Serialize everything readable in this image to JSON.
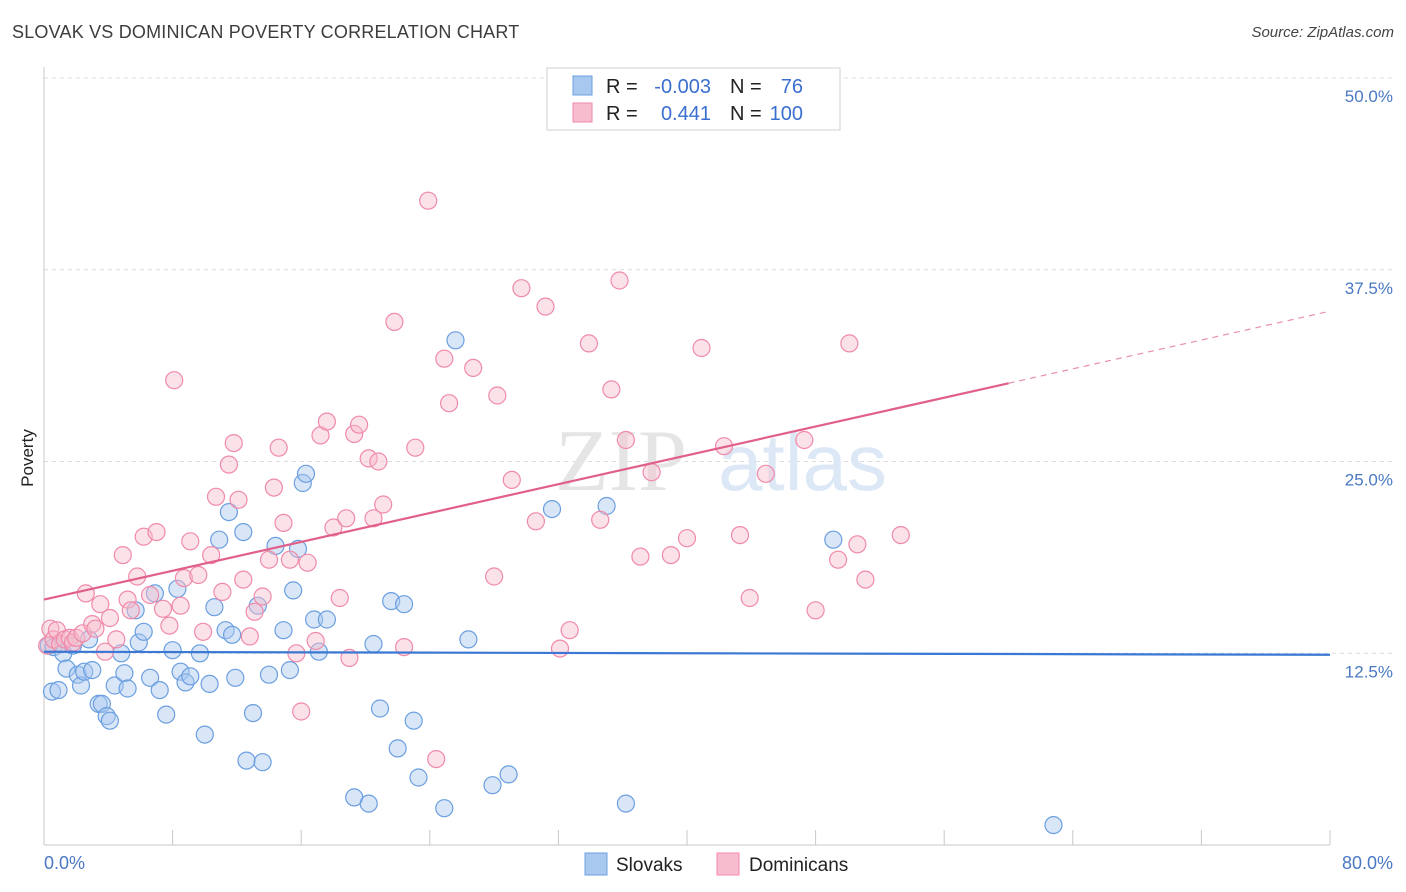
{
  "title": "SLOVAK VS DOMINICAN POVERTY CORRELATION CHART",
  "source": "Source: ZipAtlas.com",
  "chart_data": {
    "type": "scatter",
    "ylabel": "Poverty",
    "xlabel": "",
    "xlim": [
      0,
      80
    ],
    "ylim": [
      0,
      50
    ],
    "x_tick_labels": [
      {
        "value": 0,
        "label": "0.0%"
      },
      {
        "value": 80,
        "label": "80.0%"
      }
    ],
    "y_tick_labels": [
      {
        "value": 12.5,
        "label": "12.5%"
      },
      {
        "value": 25,
        "label": "25.0%"
      },
      {
        "value": 37.5,
        "label": "37.5%"
      },
      {
        "value": 50,
        "label": "50.0%"
      }
    ],
    "watermark": {
      "part1": "ZIP",
      "part2": "atlas"
    },
    "legend": {
      "r_label": "R =",
      "n_label": "N =",
      "entries": [
        {
          "r": "-0.003",
          "n": "76"
        },
        {
          "r": "0.441",
          "n": "100"
        }
      ]
    },
    "series": [
      {
        "name": "Slovaks",
        "color": "#6b9fe0",
        "fill": "#a9c8f0",
        "line_color": "#3a78d4",
        "trend": {
          "x0": 0,
          "y0": 12.6,
          "x1": 80,
          "y1": 12.4
        },
        "points": [
          [
            0.3,
            13.0
          ],
          [
            0.5,
            10.0
          ],
          [
            0.6,
            12.9
          ],
          [
            0.9,
            10.1
          ],
          [
            1.2,
            12.5
          ],
          [
            1.4,
            11.5
          ],
          [
            1.8,
            13.0
          ],
          [
            2.1,
            11.1
          ],
          [
            2.3,
            10.4
          ],
          [
            2.5,
            11.3
          ],
          [
            2.8,
            13.4
          ],
          [
            3.0,
            11.4
          ],
          [
            3.4,
            9.2
          ],
          [
            3.6,
            9.2
          ],
          [
            3.9,
            8.4
          ],
          [
            4.1,
            8.1
          ],
          [
            4.4,
            10.4
          ],
          [
            4.8,
            12.5
          ],
          [
            5.0,
            11.2
          ],
          [
            5.2,
            10.2
          ],
          [
            5.7,
            15.3
          ],
          [
            5.9,
            13.2
          ],
          [
            6.2,
            13.9
          ],
          [
            6.6,
            10.9
          ],
          [
            6.9,
            16.4
          ],
          [
            7.2,
            10.1
          ],
          [
            7.6,
            8.5
          ],
          [
            8.0,
            12.7
          ],
          [
            8.3,
            16.7
          ],
          [
            8.5,
            11.3
          ],
          [
            8.8,
            10.6
          ],
          [
            9.1,
            11.0
          ],
          [
            9.7,
            12.5
          ],
          [
            10.0,
            7.2
          ],
          [
            10.3,
            10.5
          ],
          [
            10.6,
            15.5
          ],
          [
            10.9,
            19.9
          ],
          [
            11.3,
            14.0
          ],
          [
            11.5,
            21.7
          ],
          [
            11.7,
            13.7
          ],
          [
            11.9,
            10.9
          ],
          [
            12.4,
            20.4
          ],
          [
            12.6,
            5.5
          ],
          [
            13.0,
            8.6
          ],
          [
            13.3,
            15.6
          ],
          [
            13.6,
            5.4
          ],
          [
            14.0,
            11.1
          ],
          [
            14.4,
            19.5
          ],
          [
            14.9,
            14.0
          ],
          [
            15.3,
            11.4
          ],
          [
            15.5,
            16.6
          ],
          [
            15.8,
            19.3
          ],
          [
            16.1,
            23.6
          ],
          [
            16.3,
            24.2
          ],
          [
            16.8,
            14.7
          ],
          [
            17.1,
            12.6
          ],
          [
            17.6,
            14.7
          ],
          [
            19.3,
            3.1
          ],
          [
            20.2,
            2.7
          ],
          [
            20.5,
            13.1
          ],
          [
            20.9,
            8.9
          ],
          [
            21.6,
            15.9
          ],
          [
            22.0,
            6.3
          ],
          [
            22.4,
            15.7
          ],
          [
            23.0,
            8.1
          ],
          [
            23.3,
            4.4
          ],
          [
            24.9,
            2.4
          ],
          [
            25.6,
            32.9
          ],
          [
            26.4,
            13.4
          ],
          [
            27.9,
            3.9
          ],
          [
            28.9,
            4.6
          ],
          [
            31.6,
            21.9
          ],
          [
            35.0,
            22.1
          ],
          [
            36.2,
            2.7
          ],
          [
            49.1,
            19.9
          ],
          [
            62.8,
            1.3
          ]
        ]
      },
      {
        "name": "Dominicans",
        "color": "#f08aaa",
        "fill": "#f7bccd",
        "line_color": "#e0608a",
        "trend": {
          "x0": 0,
          "y0": 16.0,
          "x1": 60,
          "y1": 30.1
        },
        "trend_dashed": {
          "x0": 60,
          "y0": 30.1,
          "x1": 80,
          "y1": 34.8
        },
        "points": [
          [
            0.2,
            13.0
          ],
          [
            0.4,
            14.1
          ],
          [
            0.6,
            13.4
          ],
          [
            0.8,
            14.0
          ],
          [
            1.0,
            13.1
          ],
          [
            1.3,
            13.4
          ],
          [
            1.6,
            13.5
          ],
          [
            1.8,
            13.2
          ],
          [
            2.0,
            13.5
          ],
          [
            2.4,
            13.8
          ],
          [
            2.6,
            16.4
          ],
          [
            3.0,
            14.4
          ],
          [
            3.2,
            14.1
          ],
          [
            3.5,
            15.7
          ],
          [
            3.8,
            12.6
          ],
          [
            4.1,
            14.8
          ],
          [
            4.5,
            13.4
          ],
          [
            4.9,
            18.9
          ],
          [
            5.2,
            16.0
          ],
          [
            5.4,
            15.3
          ],
          [
            5.8,
            17.5
          ],
          [
            6.2,
            20.1
          ],
          [
            6.6,
            16.3
          ],
          [
            7.0,
            20.4
          ],
          [
            7.4,
            15.4
          ],
          [
            7.8,
            14.3
          ],
          [
            8.1,
            30.3
          ],
          [
            8.5,
            15.6
          ],
          [
            8.7,
            17.4
          ],
          [
            9.1,
            19.8
          ],
          [
            9.6,
            17.6
          ],
          [
            9.9,
            13.9
          ],
          [
            10.4,
            18.9
          ],
          [
            10.7,
            22.7
          ],
          [
            11.1,
            16.5
          ],
          [
            11.5,
            24.8
          ],
          [
            11.8,
            26.2
          ],
          [
            12.1,
            22.5
          ],
          [
            12.4,
            17.3
          ],
          [
            12.8,
            13.6
          ],
          [
            13.1,
            15.2
          ],
          [
            13.6,
            16.2
          ],
          [
            14.0,
            18.6
          ],
          [
            14.3,
            23.3
          ],
          [
            14.6,
            25.9
          ],
          [
            14.9,
            21.0
          ],
          [
            15.3,
            18.6
          ],
          [
            15.7,
            12.5
          ],
          [
            16.0,
            8.7
          ],
          [
            16.4,
            18.4
          ],
          [
            16.9,
            13.3
          ],
          [
            17.2,
            26.7
          ],
          [
            17.6,
            27.6
          ],
          [
            18.0,
            20.7
          ],
          [
            18.4,
            16.1
          ],
          [
            18.8,
            21.3
          ],
          [
            19.0,
            12.2
          ],
          [
            19.3,
            26.8
          ],
          [
            19.6,
            27.4
          ],
          [
            20.2,
            25.2
          ],
          [
            20.5,
            21.3
          ],
          [
            20.8,
            25.0
          ],
          [
            21.1,
            22.2
          ],
          [
            21.8,
            34.1
          ],
          [
            22.4,
            12.9
          ],
          [
            23.1,
            25.9
          ],
          [
            23.9,
            42.0
          ],
          [
            24.4,
            5.6
          ],
          [
            24.9,
            31.7
          ],
          [
            25.2,
            28.8
          ],
          [
            26.7,
            31.1
          ],
          [
            28.0,
            17.5
          ],
          [
            28.2,
            29.3
          ],
          [
            29.1,
            23.8
          ],
          [
            29.7,
            36.3
          ],
          [
            30.6,
            21.1
          ],
          [
            31.2,
            35.1
          ],
          [
            32.1,
            12.8
          ],
          [
            32.7,
            14.0
          ],
          [
            33.9,
            32.7
          ],
          [
            34.6,
            21.2
          ],
          [
            35.3,
            29.7
          ],
          [
            35.8,
            36.8
          ],
          [
            36.2,
            26.4
          ],
          [
            37.1,
            18.8
          ],
          [
            37.8,
            24.3
          ],
          [
            39.0,
            18.9
          ],
          [
            40.0,
            20.0
          ],
          [
            40.9,
            32.4
          ],
          [
            42.3,
            26.0
          ],
          [
            43.3,
            20.2
          ],
          [
            43.9,
            16.1
          ],
          [
            44.9,
            24.2
          ],
          [
            47.3,
            26.4
          ],
          [
            48.0,
            15.3
          ],
          [
            49.4,
            18.6
          ],
          [
            50.1,
            32.7
          ],
          [
            50.6,
            19.6
          ],
          [
            51.1,
            17.3
          ],
          [
            53.3,
            20.2
          ]
        ]
      }
    ]
  }
}
